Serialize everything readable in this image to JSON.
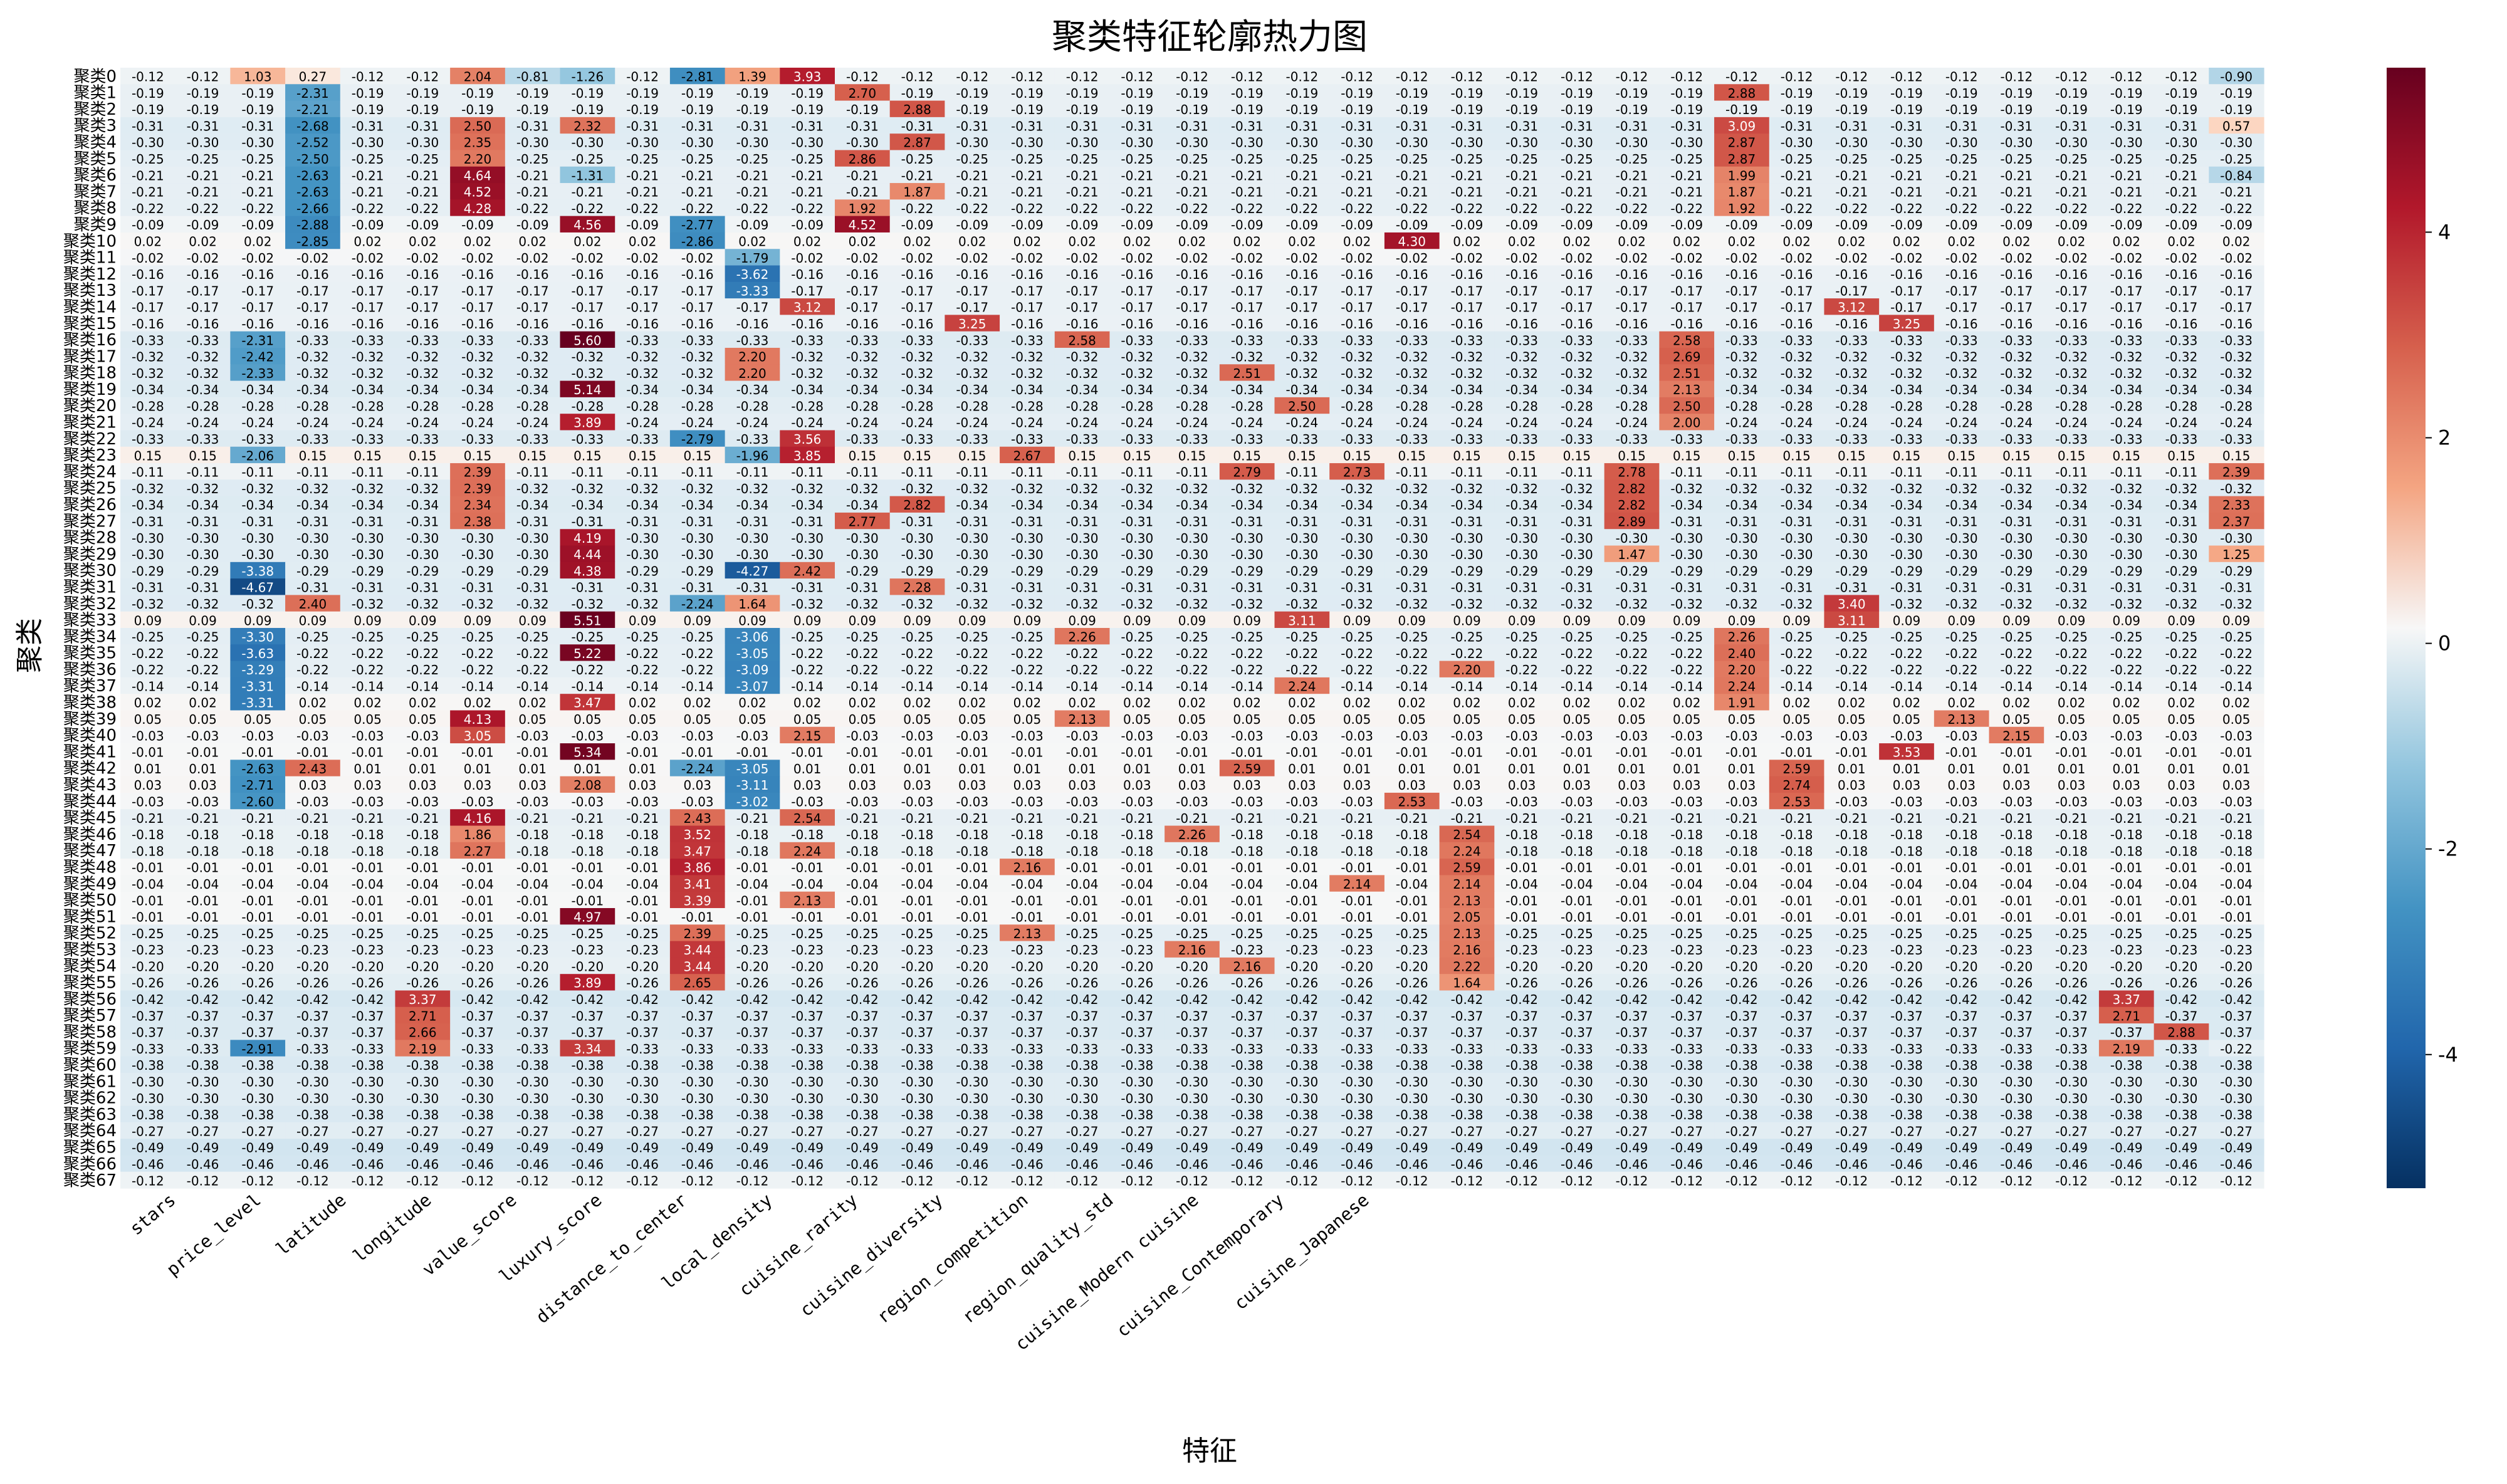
{
  "chart_data": {
    "type": "heatmap",
    "title": "聚类特征轮廓热力图",
    "xlabel": "特征",
    "ylabel": "聚类",
    "x_categories": [
      "stars",
      "price_level",
      "latitude",
      "longitude",
      "value_score",
      "luxury_score",
      "distance_to_center",
      "local_density",
      "cuisine_rarity",
      "cuisine_diversity",
      "region_competition",
      "region_quality_std",
      "cuisine_Modern cuisine",
      "cuisine_Contemporary",
      "cuisine_Japanese"
    ],
    "total_columns": 39,
    "y_categories": [
      "聚类0",
      "聚类1",
      "聚类2",
      "聚类3",
      "聚类4",
      "聚类5",
      "聚类6",
      "聚类7",
      "聚类8",
      "聚类9",
      "聚类10",
      "聚类11",
      "聚类12",
      "聚类13",
      "聚类14",
      "聚类15",
      "聚类16",
      "聚类17",
      "聚类18",
      "聚类19",
      "聚类20",
      "聚类21",
      "聚类22",
      "聚类23",
      "聚类24",
      "聚类25",
      "聚类26",
      "聚类27",
      "聚类28",
      "聚类29",
      "聚类30",
      "聚类31",
      "聚类32",
      "聚类33",
      "聚类34",
      "聚类35",
      "聚类36",
      "聚类37",
      "聚类38",
      "聚类39",
      "聚类40",
      "聚类41",
      "聚类42",
      "聚类43",
      "聚类44",
      "聚类45",
      "聚类46",
      "聚类47",
      "聚类48",
      "聚类49",
      "聚类50",
      "聚类51",
      "聚类52",
      "聚类53",
      "聚类54",
      "聚类55",
      "聚类56",
      "聚类57",
      "聚类58",
      "聚类59",
      "聚类60",
      "聚类61",
      "聚类62",
      "聚类63",
      "聚类64",
      "聚类65",
      "聚类66",
      "聚类67"
    ],
    "baseline_row_values": [
      -0.12,
      -0.19,
      -0.19,
      -0.31,
      -0.3,
      -0.25,
      -0.21,
      -0.21,
      -0.22,
      -0.09,
      0.02,
      -0.02,
      -0.16,
      -0.17,
      -0.17,
      -0.16,
      -0.33,
      -0.32,
      -0.32,
      -0.34,
      -0.28,
      -0.24,
      -0.33,
      0.15,
      -0.11,
      -0.32,
      -0.34,
      -0.31,
      -0.3,
      -0.3,
      -0.29,
      -0.31,
      -0.32,
      0.09,
      -0.25,
      -0.22,
      -0.22,
      -0.14,
      0.02,
      0.05,
      -0.03,
      -0.01,
      0.01,
      0.03,
      -0.03,
      -0.21,
      -0.18,
      -0.18,
      -0.01,
      -0.04,
      -0.01,
      -0.01,
      -0.25,
      -0.23,
      -0.2,
      -0.26,
      -0.42,
      -0.37,
      -0.37,
      -0.33,
      -0.38,
      -0.3,
      -0.3,
      -0.38,
      -0.27,
      -0.49,
      -0.46,
      -0.12
    ],
    "highlights": [
      {
        "r": 0,
        "c": 0,
        "v": -0.12
      },
      {
        "r": 0,
        "c": 2,
        "v": 1.03
      },
      {
        "r": 0,
        "c": 3,
        "v": 0.27
      },
      {
        "r": 0,
        "c": 6,
        "v": 2.04
      },
      {
        "r": 0,
        "c": 7,
        "v": -0.81
      },
      {
        "r": 0,
        "c": 8,
        "v": -1.26
      },
      {
        "r": 0,
        "c": 10,
        "v": -2.81
      },
      {
        "r": 0,
        "c": 11,
        "v": 1.39
      },
      {
        "r": 0,
        "c": 12,
        "v": 3.93
      },
      {
        "r": 0,
        "c": 38,
        "v": -0.9
      },
      {
        "r": 1,
        "c": 3,
        "v": -2.31
      },
      {
        "r": 1,
        "c": 13,
        "v": 2.7
      },
      {
        "r": 1,
        "c": 29,
        "v": 2.88
      },
      {
        "r": 2,
        "c": 3,
        "v": -2.21
      },
      {
        "r": 2,
        "c": 14,
        "v": 2.88
      },
      {
        "r": 3,
        "c": 3,
        "v": -2.68
      },
      {
        "r": 3,
        "c": 6,
        "v": 2.5
      },
      {
        "r": 3,
        "c": 8,
        "v": 2.32
      },
      {
        "r": 3,
        "c": 29,
        "v": 3.09
      },
      {
        "r": 3,
        "c": 38,
        "v": 0.57
      },
      {
        "r": 4,
        "c": 3,
        "v": -2.52
      },
      {
        "r": 4,
        "c": 6,
        "v": 2.35
      },
      {
        "r": 4,
        "c": 14,
        "v": 2.87
      },
      {
        "r": 4,
        "c": 29,
        "v": 2.87
      },
      {
        "r": 5,
        "c": 3,
        "v": -2.5
      },
      {
        "r": 5,
        "c": 6,
        "v": 2.2
      },
      {
        "r": 5,
        "c": 13,
        "v": 2.86
      },
      {
        "r": 5,
        "c": 29,
        "v": 2.87
      },
      {
        "r": 6,
        "c": 3,
        "v": -2.63
      },
      {
        "r": 6,
        "c": 6,
        "v": 4.64
      },
      {
        "r": 6,
        "c": 8,
        "v": -1.31
      },
      {
        "r": 6,
        "c": 29,
        "v": 1.99
      },
      {
        "r": 6,
        "c": 38,
        "v": -0.84
      },
      {
        "r": 7,
        "c": 3,
        "v": -2.63
      },
      {
        "r": 7,
        "c": 6,
        "v": 4.52
      },
      {
        "r": 7,
        "c": 14,
        "v": 1.87
      },
      {
        "r": 7,
        "c": 29,
        "v": 1.87
      },
      {
        "r": 8,
        "c": 3,
        "v": -2.66
      },
      {
        "r": 8,
        "c": 6,
        "v": 4.28
      },
      {
        "r": 8,
        "c": 13,
        "v": 1.92
      },
      {
        "r": 8,
        "c": 29,
        "v": 1.92
      },
      {
        "r": 9,
        "c": 3,
        "v": -2.88
      },
      {
        "r": 9,
        "c": 8,
        "v": 4.56
      },
      {
        "r": 9,
        "c": 10,
        "v": -2.77
      },
      {
        "r": 9,
        "c": 13,
        "v": 4.52
      },
      {
        "r": 10,
        "c": 3,
        "v": -2.85
      },
      {
        "r": 10,
        "c": 10,
        "v": -2.86
      },
      {
        "r": 10,
        "c": 23,
        "v": 4.3
      },
      {
        "r": 11,
        "c": 11,
        "v": -1.79
      },
      {
        "r": 12,
        "c": 11,
        "v": -3.62
      },
      {
        "r": 13,
        "c": 11,
        "v": -3.33
      },
      {
        "r": 14,
        "c": 12,
        "v": 3.12
      },
      {
        "r": 14,
        "c": 31,
        "v": 3.12
      },
      {
        "r": 15,
        "c": 15,
        "v": 3.25
      },
      {
        "r": 15,
        "c": 32,
        "v": 3.25
      },
      {
        "r": 16,
        "c": 2,
        "v": -2.31
      },
      {
        "r": 16,
        "c": 8,
        "v": 5.6
      },
      {
        "r": 16,
        "c": 17,
        "v": 2.58
      },
      {
        "r": 16,
        "c": 28,
        "v": 2.58
      },
      {
        "r": 17,
        "c": 2,
        "v": -2.42
      },
      {
        "r": 17,
        "c": 11,
        "v": 2.2
      },
      {
        "r": 17,
        "c": 28,
        "v": 2.69
      },
      {
        "r": 18,
        "c": 2,
        "v": -2.33
      },
      {
        "r": 18,
        "c": 11,
        "v": 2.2
      },
      {
        "r": 18,
        "c": 20,
        "v": 2.51
      },
      {
        "r": 18,
        "c": 28,
        "v": 2.51
      },
      {
        "r": 19,
        "c": 8,
        "v": 5.14
      },
      {
        "r": 19,
        "c": 28,
        "v": 2.13
      },
      {
        "r": 20,
        "c": 21,
        "v": 2.5
      },
      {
        "r": 20,
        "c": 28,
        "v": 2.5
      },
      {
        "r": 21,
        "c": 8,
        "v": 3.89
      },
      {
        "r": 21,
        "c": 28,
        "v": 2.0
      },
      {
        "r": 22,
        "c": 10,
        "v": -2.79
      },
      {
        "r": 22,
        "c": 12,
        "v": 3.56
      },
      {
        "r": 23,
        "c": 2,
        "v": -2.06
      },
      {
        "r": 23,
        "c": 11,
        "v": -1.96
      },
      {
        "r": 23,
        "c": 12,
        "v": 3.85
      },
      {
        "r": 23,
        "c": 16,
        "v": 2.67
      },
      {
        "r": 24,
        "c": 6,
        "v": 2.39
      },
      {
        "r": 24,
        "c": 20,
        "v": 2.79
      },
      {
        "r": 24,
        "c": 22,
        "v": 2.73
      },
      {
        "r": 24,
        "c": 27,
        "v": 2.78
      },
      {
        "r": 24,
        "c": 38,
        "v": 2.39
      },
      {
        "r": 25,
        "c": 6,
        "v": 2.39
      },
      {
        "r": 25,
        "c": 27,
        "v": 2.82
      },
      {
        "r": 26,
        "c": 6,
        "v": 2.34
      },
      {
        "r": 26,
        "c": 14,
        "v": 2.82
      },
      {
        "r": 26,
        "c": 27,
        "v": 2.82
      },
      {
        "r": 26,
        "c": 38,
        "v": 2.33
      },
      {
        "r": 27,
        "c": 6,
        "v": 2.38
      },
      {
        "r": 27,
        "c": 13,
        "v": 2.77
      },
      {
        "r": 27,
        "c": 27,
        "v": 2.89
      },
      {
        "r": 27,
        "c": 38,
        "v": 2.37
      },
      {
        "r": 28,
        "c": 8,
        "v": 4.19
      },
      {
        "r": 29,
        "c": 8,
        "v": 4.44
      },
      {
        "r": 29,
        "c": 27,
        "v": 1.47
      },
      {
        "r": 29,
        "c": 38,
        "v": 1.25
      },
      {
        "r": 30,
        "c": 2,
        "v": -3.38
      },
      {
        "r": 30,
        "c": 8,
        "v": 4.38
      },
      {
        "r": 30,
        "c": 11,
        "v": -4.27
      },
      {
        "r": 30,
        "c": 12,
        "v": 2.42
      },
      {
        "r": 31,
        "c": 2,
        "v": -4.67
      },
      {
        "r": 31,
        "c": 14,
        "v": 2.28
      },
      {
        "r": 32,
        "c": 3,
        "v": 2.4
      },
      {
        "r": 32,
        "c": 10,
        "v": -2.24
      },
      {
        "r": 32,
        "c": 11,
        "v": 1.64
      },
      {
        "r": 32,
        "c": 31,
        "v": 3.4
      },
      {
        "r": 33,
        "c": 8,
        "v": 5.51
      },
      {
        "r": 33,
        "c": 21,
        "v": 3.11
      },
      {
        "r": 33,
        "c": 31,
        "v": 3.11
      },
      {
        "r": 34,
        "c": 2,
        "v": -3.3
      },
      {
        "r": 34,
        "c": 11,
        "v": -3.06
      },
      {
        "r": 34,
        "c": 17,
        "v": 2.26
      },
      {
        "r": 34,
        "c": 29,
        "v": 2.26
      },
      {
        "r": 35,
        "c": 2,
        "v": -3.63
      },
      {
        "r": 35,
        "c": 8,
        "v": 5.22
      },
      {
        "r": 35,
        "c": 11,
        "v": -3.05
      },
      {
        "r": 35,
        "c": 29,
        "v": 2.4
      },
      {
        "r": 36,
        "c": 2,
        "v": -3.29
      },
      {
        "r": 36,
        "c": 11,
        "v": -3.09
      },
      {
        "r": 36,
        "c": 24,
        "v": 2.2
      },
      {
        "r": 36,
        "c": 29,
        "v": 2.2
      },
      {
        "r": 37,
        "c": 2,
        "v": -3.31
      },
      {
        "r": 37,
        "c": 11,
        "v": -3.07
      },
      {
        "r": 37,
        "c": 21,
        "v": 2.24
      },
      {
        "r": 37,
        "c": 29,
        "v": 2.24
      },
      {
        "r": 38,
        "c": 2,
        "v": -3.31
      },
      {
        "r": 38,
        "c": 8,
        "v": 3.47
      },
      {
        "r": 38,
        "c": 29,
        "v": 1.91
      },
      {
        "r": 39,
        "c": 6,
        "v": 4.13
      },
      {
        "r": 39,
        "c": 17,
        "v": 2.13
      },
      {
        "r": 39,
        "c": 33,
        "v": 2.13
      },
      {
        "r": 40,
        "c": 6,
        "v": 3.05
      },
      {
        "r": 40,
        "c": 12,
        "v": 2.15
      },
      {
        "r": 40,
        "c": 34,
        "v": 2.15
      },
      {
        "r": 41,
        "c": 8,
        "v": 5.34
      },
      {
        "r": 41,
        "c": 32,
        "v": 3.53
      },
      {
        "r": 42,
        "c": 2,
        "v": -2.63
      },
      {
        "r": 42,
        "c": 3,
        "v": 2.43
      },
      {
        "r": 42,
        "c": 10,
        "v": -2.24
      },
      {
        "r": 42,
        "c": 11,
        "v": -3.05
      },
      {
        "r": 42,
        "c": 20,
        "v": 2.59
      },
      {
        "r": 42,
        "c": 30,
        "v": 2.59
      },
      {
        "r": 43,
        "c": 2,
        "v": -2.71
      },
      {
        "r": 43,
        "c": 8,
        "v": 2.08
      },
      {
        "r": 43,
        "c": 11,
        "v": -3.11
      },
      {
        "r": 43,
        "c": 30,
        "v": 2.74
      },
      {
        "r": 44,
        "c": 2,
        "v": -2.6
      },
      {
        "r": 44,
        "c": 11,
        "v": -3.02
      },
      {
        "r": 44,
        "c": 23,
        "v": 2.53
      },
      {
        "r": 44,
        "c": 30,
        "v": 2.53
      },
      {
        "r": 45,
        "c": 6,
        "v": 4.16
      },
      {
        "r": 45,
        "c": 10,
        "v": 2.43
      },
      {
        "r": 45,
        "c": 12,
        "v": 2.54
      },
      {
        "r": 46,
        "c": 6,
        "v": 1.86
      },
      {
        "r": 46,
        "c": 10,
        "v": 3.52
      },
      {
        "r": 46,
        "c": 19,
        "v": 2.26
      },
      {
        "r": 46,
        "c": 24,
        "v": 2.54
      },
      {
        "r": 47,
        "c": 6,
        "v": 2.27
      },
      {
        "r": 47,
        "c": 10,
        "v": 3.47
      },
      {
        "r": 47,
        "c": 12,
        "v": 2.24
      },
      {
        "r": 47,
        "c": 24,
        "v": 2.24
      },
      {
        "r": 48,
        "c": 10,
        "v": 3.86
      },
      {
        "r": 48,
        "c": 16,
        "v": 2.16
      },
      {
        "r": 48,
        "c": 24,
        "v": 2.59
      },
      {
        "r": 49,
        "c": 10,
        "v": 3.41
      },
      {
        "r": 49,
        "c": 22,
        "v": 2.14
      },
      {
        "r": 49,
        "c": 24,
        "v": 2.14
      },
      {
        "r": 50,
        "c": 10,
        "v": 3.39
      },
      {
        "r": 50,
        "c": 12,
        "v": 2.13
      },
      {
        "r": 50,
        "c": 24,
        "v": 2.13
      },
      {
        "r": 51,
        "c": 8,
        "v": 4.97
      },
      {
        "r": 51,
        "c": 24,
        "v": 2.05
      },
      {
        "r": 52,
        "c": 10,
        "v": 2.39
      },
      {
        "r": 52,
        "c": 16,
        "v": 2.13
      },
      {
        "r": 52,
        "c": 24,
        "v": 2.13
      },
      {
        "r": 53,
        "c": 10,
        "v": 3.44
      },
      {
        "r": 53,
        "c": 19,
        "v": 2.16
      },
      {
        "r": 53,
        "c": 24,
        "v": 2.16
      },
      {
        "r": 54,
        "c": 10,
        "v": 3.44
      },
      {
        "r": 54,
        "c": 20,
        "v": 2.16
      },
      {
        "r": 54,
        "c": 24,
        "v": 2.22
      },
      {
        "r": 55,
        "c": 8,
        "v": 3.89
      },
      {
        "r": 55,
        "c": 10,
        "v": 2.65
      },
      {
        "r": 55,
        "c": 24,
        "v": 1.64
      },
      {
        "r": 56,
        "c": 5,
        "v": 3.37
      },
      {
        "r": 56,
        "c": 36,
        "v": 3.37
      },
      {
        "r": 57,
        "c": 5,
        "v": 2.71
      },
      {
        "r": 57,
        "c": 36,
        "v": 2.71
      },
      {
        "r": 58,
        "c": 5,
        "v": 2.66
      },
      {
        "r": 58,
        "c": 37,
        "v": 2.88
      },
      {
        "r": 59,
        "c": 2,
        "v": -2.91
      },
      {
        "r": 59,
        "c": 5,
        "v": 2.19
      },
      {
        "r": 59,
        "c": 8,
        "v": 3.34
      },
      {
        "r": 59,
        "c": 36,
        "v": 2.19
      },
      {
        "r": 59,
        "c": 38,
        "v": -0.22
      }
    ],
    "vmin": -5.3,
    "vmax": 5.6,
    "colormap": "RdBu_r",
    "colorbar_ticks": [
      -4,
      -2,
      0,
      2,
      4
    ],
    "colors": {
      "neg_extreme": "#053061",
      "neg_mid": "#4393c3",
      "neutral": "#f7f7f7",
      "pos_mid": "#f4a582",
      "pos_extreme": "#67001f"
    },
    "grid": false,
    "legend": "colorbar-right"
  }
}
